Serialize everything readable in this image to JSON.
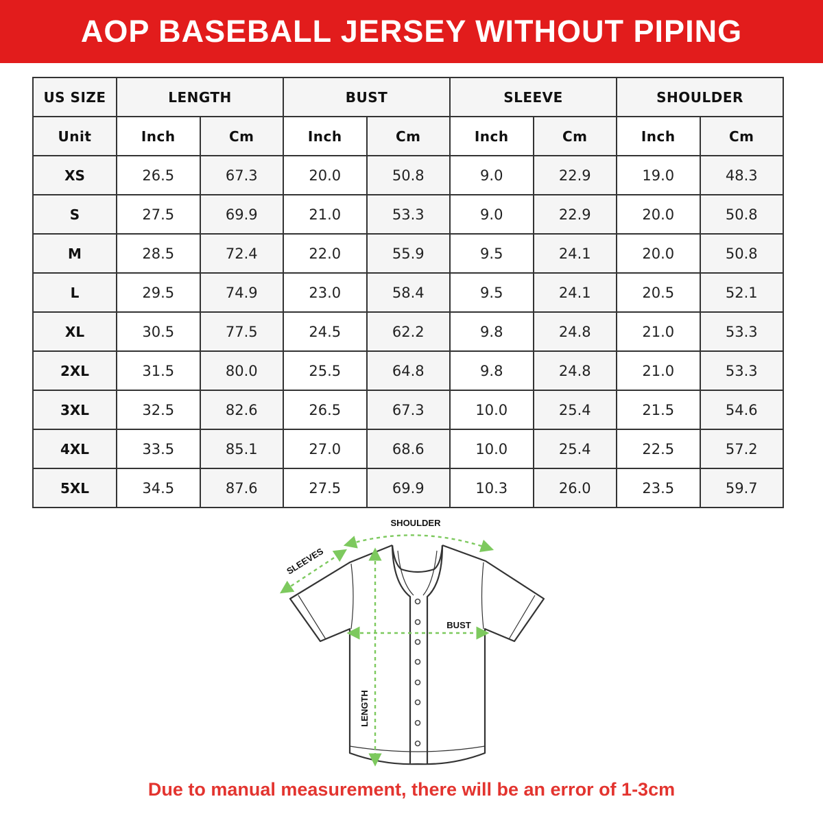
{
  "title": "AOP BASEBALL JERSEY WITHOUT PIPING",
  "table": {
    "group_headers": [
      "US SIZE",
      "LENGTH",
      "BUST",
      "SLEEVE",
      "SHOULDER"
    ],
    "unit_label": "Unit",
    "units": [
      "Inch",
      "Cm",
      "Inch",
      "Cm",
      "Inch",
      "Cm",
      "Inch",
      "Cm"
    ],
    "rows": [
      {
        "size": "XS",
        "values": [
          "26.5",
          "67.3",
          "20.0",
          "50.8",
          "9.0",
          "22.9",
          "19.0",
          "48.3"
        ]
      },
      {
        "size": "S",
        "values": [
          "27.5",
          "69.9",
          "21.0",
          "53.3",
          "9.0",
          "22.9",
          "20.0",
          "50.8"
        ]
      },
      {
        "size": "M",
        "values": [
          "28.5",
          "72.4",
          "22.0",
          "55.9",
          "9.5",
          "24.1",
          "20.0",
          "50.8"
        ]
      },
      {
        "size": "L",
        "values": [
          "29.5",
          "74.9",
          "23.0",
          "58.4",
          "9.5",
          "24.1",
          "20.5",
          "52.1"
        ]
      },
      {
        "size": "XL",
        "values": [
          "30.5",
          "77.5",
          "24.5",
          "62.2",
          "9.8",
          "24.8",
          "21.0",
          "53.3"
        ]
      },
      {
        "size": "2XL",
        "values": [
          "31.5",
          "80.0",
          "25.5",
          "64.8",
          "9.8",
          "24.8",
          "21.0",
          "53.3"
        ]
      },
      {
        "size": "3XL",
        "values": [
          "32.5",
          "82.6",
          "26.5",
          "67.3",
          "10.0",
          "25.4",
          "21.5",
          "54.6"
        ]
      },
      {
        "size": "4XL",
        "values": [
          "33.5",
          "85.1",
          "27.0",
          "68.6",
          "10.0",
          "25.4",
          "22.5",
          "57.2"
        ]
      },
      {
        "size": "5XL",
        "values": [
          "34.5",
          "87.6",
          "27.5",
          "69.9",
          "10.3",
          "26.0",
          "23.5",
          "59.7"
        ]
      }
    ]
  },
  "diagram": {
    "shoulder_label": "SHOULDER",
    "sleeves_label": "SLEEVES",
    "bust_label": "BUST",
    "length_label": "LENGTH",
    "measure_color": "#7dc95e"
  },
  "note": "Due to manual measurement, there will be an error of 1-3cm",
  "colors": {
    "banner": "#e21c1c",
    "note": "#e3342f"
  }
}
